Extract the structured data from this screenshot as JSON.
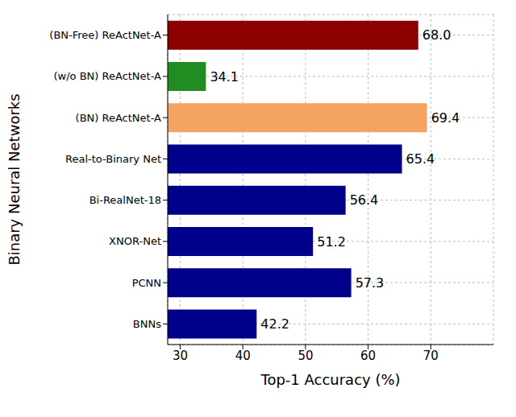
{
  "chart_data": {
    "type": "bar",
    "orientation": "horizontal",
    "y_label": "Binary Neural Networks",
    "x_label": "Top-1 Accuracy (%)",
    "categories": [
      "(BN-Free) ReActNet-A",
      "(w/o BN) ReActNet-A",
      "(BN) ReActNet-A",
      "Real-to-Binary Net",
      "Bi-RealNet-18",
      "XNOR-Net",
      "PCNN",
      "BNNs"
    ],
    "values": [
      68.0,
      34.1,
      69.4,
      65.4,
      56.4,
      51.2,
      57.3,
      42.2
    ],
    "value_labels": [
      "68.0",
      "34.1",
      "69.4",
      "65.4",
      "56.4",
      "51.2",
      "57.3",
      "42.2"
    ],
    "colors": [
      "#8b0000",
      "#228b22",
      "#f4a460",
      "#00008b",
      "#00008b",
      "#00008b",
      "#00008b",
      "#00008b"
    ],
    "xlim": [
      28,
      80
    ],
    "xticks": [
      30,
      40,
      50,
      60,
      70
    ],
    "grid": true,
    "data_labels": true
  }
}
